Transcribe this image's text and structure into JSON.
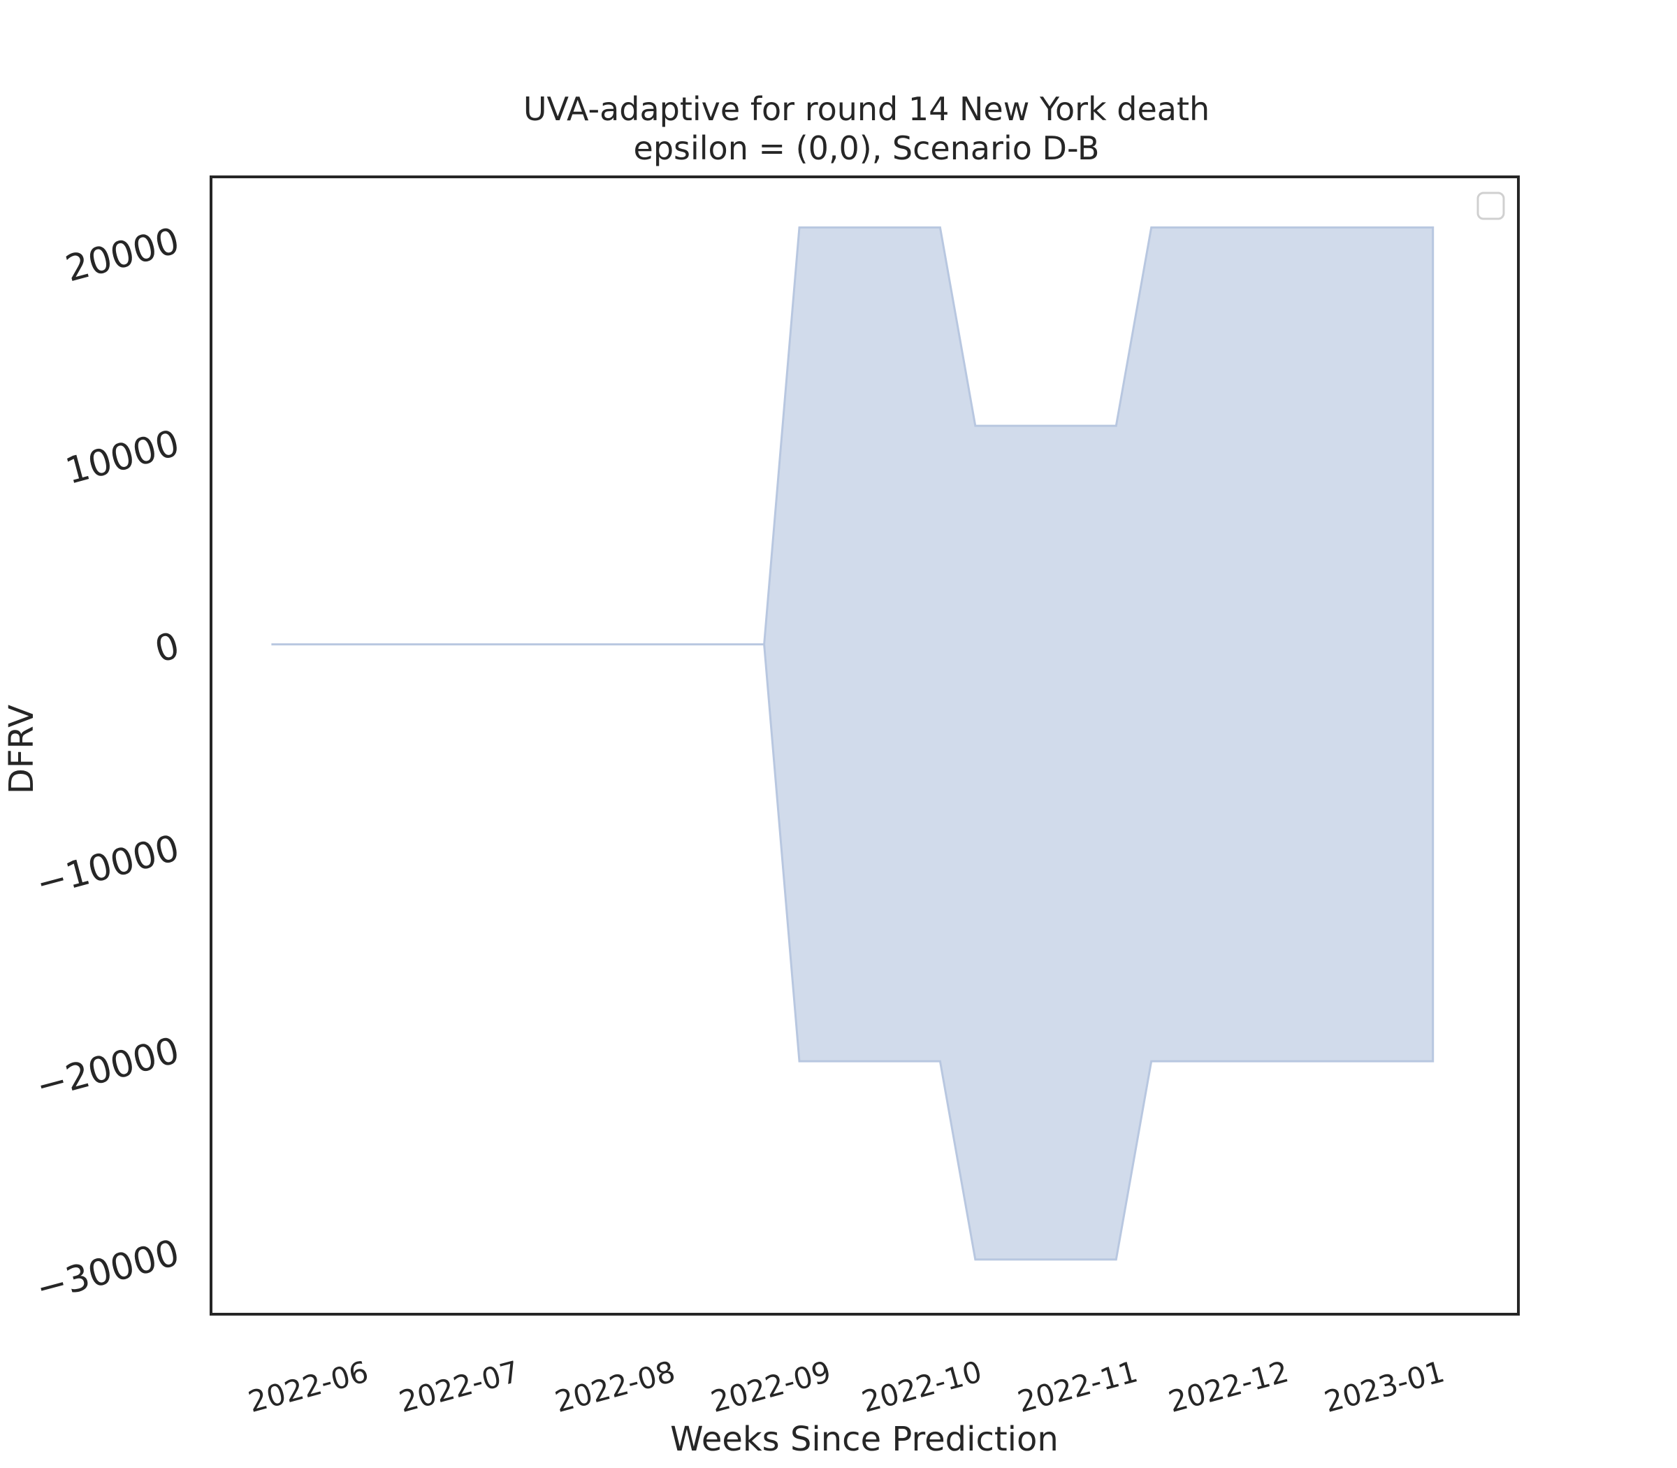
{
  "chart_data": {
    "type": "area",
    "title": "UVA-adaptive for round 14 New York death",
    "subtitle": "epsilon = (0,0), Scenario D-B",
    "xlabel": "Weeks Since Prediction",
    "ylabel": "DFRV",
    "x_tick_labels": [
      "2022-06",
      "2022-07",
      "2022-08",
      "2022-09",
      "2022-10",
      "2022-11",
      "2022-12",
      "2023-01"
    ],
    "y_ticks": [
      20000,
      10000,
      0,
      -10000,
      -20000,
      -30000
    ],
    "y_tick_labels": [
      "20000",
      "10000",
      "0",
      "−10000",
      "−20000",
      "−30000"
    ],
    "ylim": [
      -33100,
      23100
    ],
    "xlim": [
      "2022-05-08",
      "2023-01-23"
    ],
    "grid": false,
    "legend": "top-right",
    "colors": {
      "fill": "#d1dbeb",
      "edge": "#b8c7e0",
      "axes": "#262626"
    },
    "series": [
      {
        "x": [
          "2022-05-20",
          "2022-05-27",
          "2022-06-03",
          "2022-06-10",
          "2022-06-17",
          "2022-06-24",
          "2022-07-01",
          "2022-07-08",
          "2022-07-15",
          "2022-07-22",
          "2022-07-29",
          "2022-08-05",
          "2022-08-12",
          "2022-08-19",
          "2022-08-26",
          "2022-09-02",
          "2022-09-09",
          "2022-09-16",
          "2022-09-23",
          "2022-09-30",
          "2022-10-07",
          "2022-10-14",
          "2022-10-21",
          "2022-10-28",
          "2022-11-04",
          "2022-11-11",
          "2022-11-18",
          "2022-11-25",
          "2022-12-02",
          "2022-12-09",
          "2022-12-16",
          "2022-12-23",
          "2022-12-30",
          "2023-01-06"
        ],
        "lower": [
          0,
          0,
          0,
          0,
          0,
          0,
          0,
          0,
          0,
          0,
          0,
          0,
          0,
          0,
          0,
          -20600,
          -20600,
          -20600,
          -20600,
          -20600,
          -30400,
          -30400,
          -30400,
          -30400,
          -30400,
          -20600,
          -20600,
          -20600,
          -20600,
          -20600,
          -20600,
          -20600,
          -20600,
          -20600
        ],
        "upper": [
          0,
          0,
          0,
          0,
          0,
          0,
          0,
          0,
          0,
          0,
          0,
          0,
          0,
          0,
          0,
          20600,
          20600,
          20600,
          20600,
          20600,
          10800,
          10800,
          10800,
          10800,
          10800,
          20600,
          20600,
          20600,
          20600,
          20600,
          20600,
          20600,
          20600,
          20600
        ]
      }
    ]
  }
}
